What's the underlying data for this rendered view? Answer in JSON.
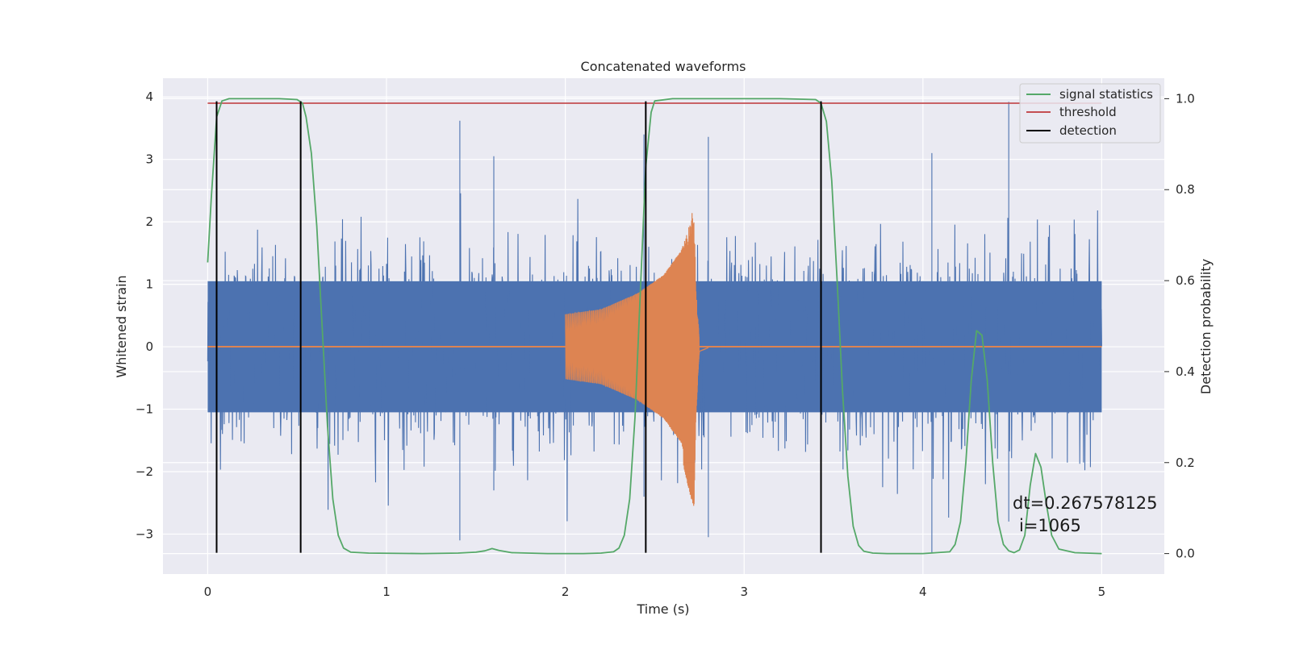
{
  "chart_data": {
    "type": "line",
    "title": "Concatenated waveforms",
    "xlabel": "Time (s)",
    "ylabel": "Whitened strain",
    "y2label": "Detection probability",
    "xlim": [
      -0.25,
      5.35
    ],
    "ylim": [
      -3.64,
      4.3
    ],
    "y2lim": [
      -0.045,
      1.045
    ],
    "xticks": [
      0,
      1,
      2,
      3,
      4,
      5
    ],
    "yticks": [
      -3,
      -2,
      -1,
      0,
      1,
      2,
      3,
      4
    ],
    "y2ticks": [
      0.0,
      0.2,
      0.4,
      0.6,
      0.8,
      1.0
    ],
    "grid": true,
    "legend_position": "upper right",
    "colors": {
      "background": "#eaeaf2",
      "strain": "#4c72b0",
      "waveform": "#dd8452",
      "signal_statistics": "#55a868",
      "threshold": "#c44e52",
      "detection": "#000000"
    },
    "series": [
      {
        "name": "signal statistics",
        "axis": "right",
        "x": [
          0.0,
          0.02,
          0.05,
          0.08,
          0.12,
          0.2,
          0.3,
          0.4,
          0.5,
          0.53,
          0.55,
          0.58,
          0.61,
          0.64,
          0.67,
          0.7,
          0.73,
          0.76,
          0.8,
          0.9,
          1.2,
          1.4,
          1.5,
          1.55,
          1.59,
          1.63,
          1.7,
          1.9,
          2.1,
          2.2,
          2.27,
          2.3,
          2.33,
          2.36,
          2.39,
          2.42,
          2.45,
          2.48,
          2.5,
          2.6,
          2.8,
          3.0,
          3.2,
          3.4,
          3.43,
          3.46,
          3.49,
          3.52,
          3.55,
          3.58,
          3.61,
          3.64,
          3.67,
          3.72,
          3.8,
          4.0,
          4.15,
          4.18,
          4.21,
          4.24,
          4.27,
          4.3,
          4.33,
          4.36,
          4.39,
          4.42,
          4.45,
          4.48,
          4.51,
          4.54,
          4.57,
          4.6,
          4.63,
          4.66,
          4.69,
          4.72,
          4.76,
          4.85,
          5.0
        ],
        "values": [
          0.64,
          0.78,
          0.96,
          0.995,
          1.0,
          1.0,
          1.0,
          1.0,
          0.998,
          0.99,
          0.96,
          0.88,
          0.72,
          0.5,
          0.28,
          0.12,
          0.04,
          0.012,
          0.003,
          0.001,
          0.0,
          0.001,
          0.003,
          0.006,
          0.011,
          0.007,
          0.002,
          0.0,
          0.0,
          0.001,
          0.004,
          0.012,
          0.04,
          0.12,
          0.3,
          0.58,
          0.85,
          0.97,
          0.995,
          1.0,
          1.0,
          1.0,
          1.0,
          0.998,
          0.99,
          0.95,
          0.82,
          0.6,
          0.36,
          0.17,
          0.06,
          0.018,
          0.005,
          0.001,
          0.0,
          0.0,
          0.004,
          0.02,
          0.07,
          0.2,
          0.38,
          0.49,
          0.48,
          0.38,
          0.2,
          0.07,
          0.02,
          0.006,
          0.002,
          0.008,
          0.04,
          0.15,
          0.22,
          0.19,
          0.11,
          0.04,
          0.01,
          0.002,
          0.0
        ]
      },
      {
        "name": "threshold",
        "axis": "right",
        "x": [
          0.0,
          5.0
        ],
        "values": [
          0.99,
          0.99
        ]
      },
      {
        "name": "detection",
        "axis": "left",
        "x": [
          0.05,
          0.52,
          2.45,
          3.43
        ],
        "values": [
          [
            -3.3,
            3.93
          ],
          [
            -3.3,
            3.93
          ],
          [
            -3.3,
            3.93
          ],
          [
            -3.3,
            3.93
          ]
        ]
      }
    ],
    "legend": [
      "signal statistics",
      "threshold",
      "detection"
    ],
    "strain_spikes_estimated": [
      {
        "x": 0.05,
        "values": [
          2.7,
          -1.95
        ]
      },
      {
        "x": 1.41,
        "values": [
          3.62,
          -3.1
        ]
      },
      {
        "x": 1.6,
        "values": [
          3.05,
          -2.3
        ]
      },
      {
        "x": 2.44,
        "values": [
          3.4,
          -2.4
        ]
      },
      {
        "x": 2.8,
        "values": [
          3.36,
          -3.05
        ]
      },
      {
        "x": 4.05,
        "values": [
          3.1,
          -3.3
        ]
      },
      {
        "x": 4.48,
        "values": [
          3.92,
          -2.8
        ]
      }
    ],
    "waveform_envelope_estimated": {
      "x": [
        2.0,
        2.2,
        2.4,
        2.55,
        2.65,
        2.7,
        2.72,
        2.73,
        2.75,
        2.8
      ],
      "values": [
        0.52,
        0.6,
        0.85,
        1.15,
        1.55,
        2.1,
        2.25,
        1.0,
        0.1,
        0.02
      ]
    },
    "annotation": {
      "line1": "dt=0.267578125",
      "line2": "i=1065"
    }
  }
}
